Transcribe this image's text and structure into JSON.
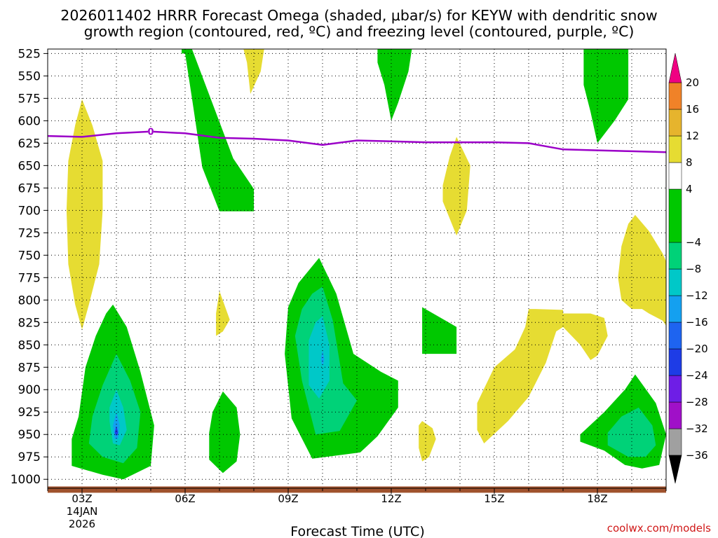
{
  "chart_data": {
    "type": "time-height contour",
    "title_line1": "2026011402 HRRR Forecast Omega (shaded, μbar/s) for KEYW with dendritic snow",
    "title_line2": "growth region (contoured, red, ºC) and freezing level (contoured, purple, ºC)",
    "xlabel": "Forecast Time (UTC)",
    "x_axis": {
      "range_hours": [
        2,
        20
      ],
      "ticks": [
        {
          "h": 3,
          "label": "03Z",
          "sub1": "14JAN",
          "sub2": "2026"
        },
        {
          "h": 6,
          "label": "06Z"
        },
        {
          "h": 9,
          "label": "09Z"
        },
        {
          "h": 12,
          "label": "12Z"
        },
        {
          "h": 15,
          "label": "15Z"
        },
        {
          "h": 18,
          "label": "18Z"
        }
      ]
    },
    "y_axis": {
      "range_hpa": [
        1010,
        520
      ],
      "ticks": [
        525,
        550,
        575,
        600,
        625,
        650,
        675,
        700,
        725,
        750,
        775,
        800,
        825,
        850,
        875,
        900,
        925,
        950,
        975,
        1000
      ]
    },
    "colorbar": {
      "levels": [
        -36,
        -32,
        -28,
        -24,
        -20,
        -16,
        -12,
        -8,
        -4,
        4,
        8,
        12,
        16,
        20
      ],
      "bands": [
        {
          "from": -40,
          "to": -36,
          "color": "#000000"
        },
        {
          "from": -36,
          "to": -32,
          "color": "#a0a0a0"
        },
        {
          "from": -32,
          "to": -28,
          "color": "#a010c8"
        },
        {
          "from": -28,
          "to": -24,
          "color": "#6e1ee6"
        },
        {
          "from": -24,
          "to": -20,
          "color": "#1e3ce6"
        },
        {
          "from": -20,
          "to": -16,
          "color": "#1e64f0"
        },
        {
          "from": -16,
          "to": -12,
          "color": "#14a0f0"
        },
        {
          "from": -12,
          "to": -8,
          "color": "#00c8c8"
        },
        {
          "from": -8,
          "to": -4,
          "color": "#00d278"
        },
        {
          "from": -4,
          "to": 4,
          "color": "#00c800"
        },
        {
          "from": 4,
          "to": 8,
          "color": "#ffffff"
        },
        {
          "from": 8,
          "to": 12,
          "color": "#e6dc32"
        },
        {
          "from": 12,
          "to": 16,
          "color": "#e6b42d"
        },
        {
          "from": 16,
          "to": 20,
          "color": "#f08228"
        },
        {
          "from": 20,
          "to": 24,
          "color": "#fa3c3c"
        },
        {
          "from": 24,
          "to": 28,
          "color": "#f00082"
        }
      ]
    },
    "freezing_level": {
      "color": "#9b00c8",
      "points": [
        [
          2.0,
          617
        ],
        [
          3.0,
          618
        ],
        [
          4.0,
          614
        ],
        [
          5.0,
          612
        ],
        [
          6.0,
          614
        ],
        [
          7.0,
          619
        ],
        [
          8.0,
          620
        ],
        [
          9.0,
          622
        ],
        [
          10.0,
          627
        ],
        [
          11.0,
          622
        ],
        [
          12.0,
          623
        ],
        [
          13.0,
          624
        ],
        [
          14.0,
          624
        ],
        [
          15.0,
          624
        ],
        [
          16.0,
          625
        ],
        [
          17.0,
          632
        ],
        [
          18.0,
          633
        ],
        [
          19.0,
          634
        ],
        [
          20.0,
          635
        ]
      ],
      "label": "0",
      "label_at": [
        5.0,
        612
      ]
    },
    "omega_regions": [
      {
        "level": -4,
        "color": "#00c800",
        "points": [
          [
            5.9,
            520
          ],
          [
            6.2,
            520
          ],
          [
            7.4,
            642
          ],
          [
            8.0,
            676
          ],
          [
            8.0,
            701
          ],
          [
            7.0,
            701
          ],
          [
            6.5,
            652
          ],
          [
            6.2,
            575
          ],
          [
            6.0,
            525
          ],
          [
            5.9,
            525
          ]
        ]
      },
      {
        "level": 4,
        "color": "#e6dc32",
        "points": [
          [
            7.7,
            520
          ],
          [
            8.3,
            520
          ],
          [
            8.2,
            545
          ],
          [
            7.9,
            570
          ],
          [
            7.8,
            535
          ]
        ]
      },
      {
        "level": -4,
        "color": "#00c800",
        "points": [
          [
            11.6,
            520
          ],
          [
            12.6,
            520
          ],
          [
            12.5,
            545
          ],
          [
            12.2,
            580
          ],
          [
            12.0,
            600
          ],
          [
            11.8,
            560
          ],
          [
            11.6,
            535
          ]
        ]
      },
      {
        "level": -4,
        "color": "#00c800",
        "points": [
          [
            17.6,
            520
          ],
          [
            18.9,
            520
          ],
          [
            18.9,
            576
          ],
          [
            18.5,
            600
          ],
          [
            18.0,
            625
          ],
          [
            17.8,
            590
          ],
          [
            17.6,
            560
          ]
        ]
      },
      {
        "level": 4,
        "color": "#e6dc32",
        "points": [
          [
            3.0,
            576
          ],
          [
            3.3,
            605
          ],
          [
            3.6,
            645
          ],
          [
            3.6,
            700
          ],
          [
            3.5,
            760
          ],
          [
            3.2,
            805
          ],
          [
            3.0,
            833
          ],
          [
            2.8,
            805
          ],
          [
            2.6,
            760
          ],
          [
            2.55,
            700
          ],
          [
            2.6,
            645
          ],
          [
            2.8,
            605
          ]
        ]
      },
      {
        "level": 4,
        "color": "#e6dc32",
        "points": [
          [
            13.9,
            618
          ],
          [
            14.3,
            650
          ],
          [
            14.2,
            700
          ],
          [
            13.9,
            728
          ],
          [
            13.5,
            690
          ],
          [
            13.5,
            672
          ],
          [
            13.7,
            640
          ]
        ]
      },
      {
        "level": 4,
        "color": "#e6dc32",
        "points": [
          [
            19.1,
            705
          ],
          [
            19.5,
            723
          ],
          [
            19.9,
            748
          ],
          [
            20.2,
            775
          ],
          [
            20.2,
            840
          ],
          [
            19.9,
            823
          ],
          [
            19.5,
            815
          ],
          [
            19.3,
            810
          ],
          [
            19.0,
            810
          ],
          [
            18.7,
            800
          ],
          [
            18.6,
            775
          ],
          [
            18.7,
            740
          ],
          [
            18.9,
            715
          ]
        ]
      },
      {
        "level": 4,
        "color": "#e6dc32",
        "points": [
          [
            7.0,
            790
          ],
          [
            7.3,
            822
          ],
          [
            7.1,
            835
          ],
          [
            6.9,
            840
          ],
          [
            6.9,
            815
          ]
        ]
      },
      {
        "level": 4,
        "color": "#e6dc32",
        "points": [
          [
            16.0,
            810
          ],
          [
            16.2,
            810
          ],
          [
            17.0,
            811
          ],
          [
            17.0,
            815
          ],
          [
            17.8,
            815
          ],
          [
            18.2,
            820
          ],
          [
            18.3,
            840
          ],
          [
            18.0,
            862
          ],
          [
            17.8,
            867
          ],
          [
            17.5,
            850
          ],
          [
            17.0,
            830
          ],
          [
            16.8,
            835
          ],
          [
            16.5,
            870
          ],
          [
            16.0,
            908
          ],
          [
            15.4,
            935
          ],
          [
            14.7,
            960
          ],
          [
            14.5,
            945
          ],
          [
            14.5,
            915
          ],
          [
            15.0,
            875
          ],
          [
            15.6,
            855
          ],
          [
            15.9,
            830
          ]
        ]
      },
      {
        "level": 4,
        "color": "#e6dc32",
        "points": [
          [
            12.9,
            935
          ],
          [
            13.2,
            943
          ],
          [
            13.3,
            955
          ],
          [
            13.1,
            975
          ],
          [
            12.9,
            980
          ],
          [
            12.8,
            965
          ],
          [
            12.8,
            940
          ]
        ]
      },
      {
        "level": -4,
        "color": "#00c800",
        "points": [
          [
            3.9,
            805
          ],
          [
            4.3,
            830
          ],
          [
            4.7,
            880
          ],
          [
            5.1,
            940
          ],
          [
            5.0,
            985
          ],
          [
            4.2,
            1000
          ],
          [
            3.6,
            995
          ],
          [
            2.7,
            985
          ],
          [
            2.7,
            955
          ],
          [
            2.9,
            930
          ],
          [
            3.1,
            875
          ],
          [
            3.4,
            840
          ],
          [
            3.7,
            815
          ]
        ]
      },
      {
        "level": -8,
        "color": "#00d278",
        "points": [
          [
            4.0,
            860
          ],
          [
            4.4,
            890
          ],
          [
            4.7,
            925
          ],
          [
            4.6,
            965
          ],
          [
            4.2,
            982
          ],
          [
            3.6,
            975
          ],
          [
            3.2,
            960
          ],
          [
            3.3,
            930
          ],
          [
            3.6,
            895
          ]
        ]
      },
      {
        "level": -12,
        "color": "#00c8c8",
        "points": [
          [
            4.0,
            900
          ],
          [
            4.2,
            920
          ],
          [
            4.3,
            945
          ],
          [
            4.1,
            962
          ],
          [
            3.9,
            960
          ],
          [
            3.8,
            935
          ],
          [
            3.8,
            920
          ]
        ]
      },
      {
        "level": -16,
        "color": "#14a0f0",
        "points": [
          [
            4.0,
            925
          ],
          [
            4.1,
            940
          ],
          [
            4.05,
            955
          ],
          [
            3.95,
            955
          ],
          [
            3.9,
            940
          ]
        ]
      },
      {
        "level": -20,
        "color": "#1e3ce6",
        "points": [
          [
            4.0,
            940
          ],
          [
            4.05,
            948
          ],
          [
            4.0,
            952
          ],
          [
            3.95,
            948
          ]
        ]
      },
      {
        "level": -4,
        "color": "#00c800",
        "points": [
          [
            7.1,
            902
          ],
          [
            7.5,
            920
          ],
          [
            7.6,
            950
          ],
          [
            7.5,
            980
          ],
          [
            7.1,
            993
          ],
          [
            6.7,
            978
          ],
          [
            6.7,
            948
          ],
          [
            6.8,
            925
          ]
        ]
      },
      {
        "level": -4,
        "color": "#00c800",
        "points": [
          [
            9.9,
            753
          ],
          [
            10.4,
            793
          ],
          [
            10.9,
            860
          ],
          [
            11.7,
            880
          ],
          [
            12.2,
            890
          ],
          [
            12.2,
            920
          ],
          [
            11.6,
            952
          ],
          [
            11.1,
            970
          ],
          [
            9.7,
            977
          ],
          [
            9.1,
            932
          ],
          [
            8.9,
            860
          ],
          [
            9.0,
            808
          ],
          [
            9.3,
            781
          ]
        ]
      },
      {
        "level": -8,
        "color": "#00d278",
        "points": [
          [
            10.0,
            785
          ],
          [
            10.3,
            823
          ],
          [
            10.6,
            893
          ],
          [
            11.0,
            912
          ],
          [
            10.5,
            946
          ],
          [
            9.8,
            950
          ],
          [
            9.4,
            890
          ],
          [
            9.2,
            840
          ],
          [
            9.4,
            810
          ],
          [
            9.7,
            793
          ]
        ]
      },
      {
        "level": -12,
        "color": "#00c8c8",
        "points": [
          [
            10.0,
            818
          ],
          [
            10.2,
            850
          ],
          [
            10.2,
            890
          ],
          [
            9.9,
            910
          ],
          [
            9.6,
            895
          ],
          [
            9.6,
            845
          ],
          [
            9.8,
            825
          ]
        ]
      },
      {
        "level": -16,
        "color": "#14a0f0",
        "points": [
          [
            10.0,
            856
          ],
          [
            10.05,
            866
          ],
          [
            10.0,
            874
          ],
          [
            9.95,
            866
          ]
        ]
      },
      {
        "level": -4,
        "color": "#00c800",
        "points": [
          [
            12.9,
            808
          ],
          [
            13.9,
            830
          ],
          [
            13.9,
            860
          ],
          [
            12.9,
            860
          ],
          [
            12.9,
            835
          ]
        ]
      },
      {
        "level": -4,
        "color": "#00c800",
        "points": [
          [
            19.1,
            883
          ],
          [
            19.7,
            915
          ],
          [
            20.0,
            950
          ],
          [
            19.8,
            984
          ],
          [
            19.3,
            988
          ],
          [
            18.8,
            984
          ],
          [
            18.2,
            968
          ],
          [
            17.5,
            958
          ],
          [
            17.5,
            950
          ],
          [
            18.2,
            925
          ],
          [
            18.8,
            900
          ]
        ]
      },
      {
        "level": -8,
        "color": "#00d278",
        "points": [
          [
            19.2,
            920
          ],
          [
            19.6,
            940
          ],
          [
            19.7,
            962
          ],
          [
            19.4,
            975
          ],
          [
            18.9,
            975
          ],
          [
            18.3,
            962
          ],
          [
            18.3,
            948
          ],
          [
            18.7,
            930
          ]
        ]
      }
    ],
    "surface_color": "#a0522d",
    "surface_band_hpa": [
      1015,
      1008
    ],
    "credit": "coolwx.com/models"
  }
}
